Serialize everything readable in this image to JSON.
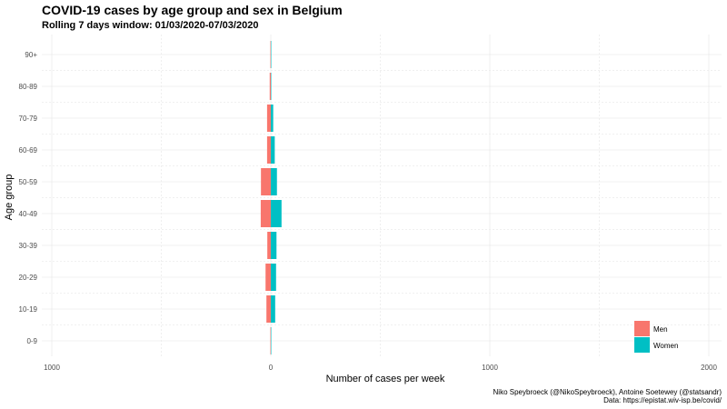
{
  "chart_data": {
    "type": "bar",
    "orientation": "horizontal",
    "stacking": "diverging",
    "title": "COVID-19 cases by age group and sex in Belgium",
    "subtitle": "Rolling 7 days window: 01/03/2020-07/03/2020",
    "xlabel": "Number of cases per week",
    "ylabel": "Age group",
    "categories": [
      "0-9",
      "10-19",
      "20-29",
      "30-39",
      "40-49",
      "50-59",
      "60-69",
      "70-79",
      "80-89",
      "90+"
    ],
    "series": [
      {
        "name": "Men",
        "color": "#F8766D",
        "side": "left",
        "values": [
          2,
          20,
          24,
          16,
          46,
          45,
          17,
          17,
          5,
          2
        ]
      },
      {
        "name": "Women",
        "color": "#00BFC4",
        "side": "right",
        "values": [
          1,
          20,
          24,
          26,
          49,
          28,
          18,
          11,
          1,
          1
        ]
      }
    ],
    "xlim": [
      -1000,
      2000
    ],
    "xticks": [
      -1000,
      0,
      1000,
      2000
    ],
    "xtick_labels": [
      "1000",
      "0",
      "1000",
      "2000"
    ],
    "grid": true,
    "legend_position": "bottom-right",
    "caption": [
      "Niko Speybroeck (@NikoSpeybroeck), Antoine Soetewey (@statsandr)",
      "Data: https://epistat.wiv-isp.be/covid/"
    ]
  }
}
